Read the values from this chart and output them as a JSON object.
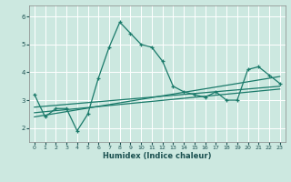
{
  "xlabel": "Humidex (Indice chaleur)",
  "bg_color": "#cce8e0",
  "line_color": "#1a7a6a",
  "grid_color": "#ffffff",
  "xlim": [
    -0.5,
    23.5
  ],
  "ylim": [
    1.5,
    6.4
  ],
  "yticks": [
    2,
    3,
    4,
    5,
    6
  ],
  "xticks": [
    0,
    1,
    2,
    3,
    4,
    5,
    6,
    7,
    8,
    9,
    10,
    11,
    12,
    13,
    14,
    15,
    16,
    17,
    18,
    19,
    20,
    21,
    22,
    23
  ],
  "main_line_x": [
    0,
    1,
    2,
    3,
    4,
    5,
    6,
    7,
    8,
    9,
    10,
    11,
    12,
    13,
    14,
    15,
    16,
    17,
    18,
    19,
    20,
    21,
    22,
    23
  ],
  "main_line_y": [
    3.2,
    2.4,
    2.7,
    2.7,
    1.9,
    2.5,
    3.8,
    4.9,
    5.8,
    5.4,
    5.0,
    4.9,
    4.4,
    3.5,
    3.3,
    3.2,
    3.1,
    3.3,
    3.0,
    3.0,
    4.1,
    4.2,
    3.9,
    3.6
  ],
  "reg_line1_x": [
    0,
    23
  ],
  "reg_line1_y": [
    2.75,
    3.5
  ],
  "reg_line2_x": [
    0,
    23
  ],
  "reg_line2_y": [
    2.55,
    3.4
  ],
  "reg_line3_x": [
    0,
    23
  ],
  "reg_line3_y": [
    2.4,
    3.85
  ]
}
